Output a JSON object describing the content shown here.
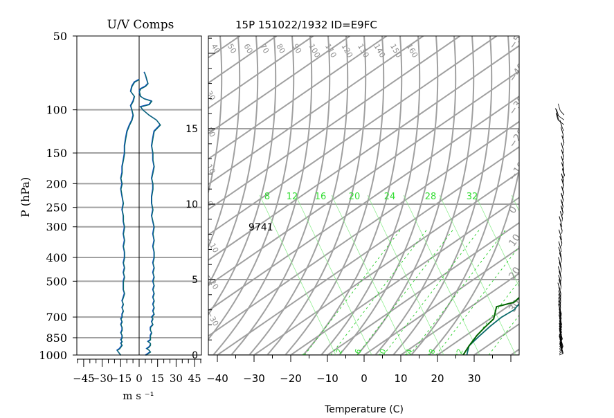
{
  "chart_data": [
    {
      "type": "line",
      "title": "U/V Comps",
      "xlabel": "m s ⁻¹",
      "ylabel": "P (hPa)",
      "xlim": [
        -50,
        50
      ],
      "ylim": [
        1000,
        50
      ],
      "y_scale": "log",
      "x_tick_labels": [
        "−45",
        "−30",
        "−15",
        "0",
        "15",
        "30",
        "45"
      ],
      "y_tick_labels": [
        "50",
        "100",
        "150",
        "200",
        "250",
        "300",
        "400",
        "500",
        "700",
        "850",
        "1000"
      ],
      "series": [
        {
          "key": "u",
          "color": "#0a6a6a",
          "points": [
            [
              -15,
              1000
            ],
            [
              -16,
              985
            ],
            [
              -17,
              970
            ],
            [
              -18,
              955
            ],
            [
              -16,
              940
            ],
            [
              -15,
              925
            ],
            [
              -14,
              910
            ],
            [
              -15,
              895
            ],
            [
              -14,
              880
            ],
            [
              -15,
              865
            ],
            [
              -14,
              850
            ],
            [
              -14,
              830
            ],
            [
              -15,
              810
            ],
            [
              -14,
              790
            ],
            [
              -14,
              770
            ],
            [
              -15,
              750
            ],
            [
              -14,
              730
            ],
            [
              -15,
              710
            ],
            [
              -14,
              700
            ],
            [
              -14,
              680
            ],
            [
              -13,
              660
            ],
            [
              -14,
              640
            ],
            [
              -13,
              620
            ],
            [
              -14,
              600
            ],
            [
              -13,
              580
            ],
            [
              -12,
              560
            ],
            [
              -13,
              540
            ],
            [
              -13,
              520
            ],
            [
              -13,
              500
            ],
            [
              -12,
              480
            ],
            [
              -13,
              460
            ],
            [
              -12,
              440
            ],
            [
              -13,
              420
            ],
            [
              -12,
              400
            ],
            [
              -12,
              380
            ],
            [
              -13,
              360
            ],
            [
              -12,
              340
            ],
            [
              -13,
              320
            ],
            [
              -12,
              300
            ],
            [
              -13,
              285
            ],
            [
              -13,
              270
            ],
            [
              -14,
              255
            ],
            [
              -13,
              240
            ],
            [
              -14,
              225
            ],
            [
              -15,
              210
            ],
            [
              -14,
              200
            ],
            [
              -15,
              190
            ],
            [
              -14,
              180
            ],
            [
              -14,
              170
            ],
            [
              -13,
              160
            ],
            [
              -12,
              150
            ],
            [
              -12,
              140
            ],
            [
              -11,
              130
            ],
            [
              -10,
              122
            ],
            [
              -8,
              115
            ],
            [
              -6,
              110
            ],
            [
              -5,
              105
            ],
            [
              -6,
              100
            ],
            [
              -7,
              96
            ],
            [
              -5,
              92
            ],
            [
              -4,
              88
            ],
            [
              -7,
              84
            ],
            [
              -6,
              80
            ],
            [
              -4,
              77
            ],
            [
              -2,
              76
            ],
            [
              0,
              75
            ]
          ]
        },
        {
          "key": "v",
          "color": "#0a6a6a",
          "points": [
            [
              5,
              1000
            ],
            [
              7,
              985
            ],
            [
              9,
              970
            ],
            [
              8,
              955
            ],
            [
              6,
              940
            ],
            [
              8,
              925
            ],
            [
              9,
              910
            ],
            [
              9,
              895
            ],
            [
              7,
              880
            ],
            [
              9,
              865
            ],
            [
              9,
              850
            ],
            [
              9,
              830
            ],
            [
              10,
              810
            ],
            [
              9,
              790
            ],
            [
              9,
              770
            ],
            [
              11,
              750
            ],
            [
              10,
              730
            ],
            [
              11,
              710
            ],
            [
              10,
              700
            ],
            [
              12,
              680
            ],
            [
              11,
              660
            ],
            [
              12,
              640
            ],
            [
              11,
              620
            ],
            [
              12,
              600
            ],
            [
              11,
              580
            ],
            [
              12,
              560
            ],
            [
              11,
              540
            ],
            [
              12,
              520
            ],
            [
              11,
              500
            ],
            [
              12,
              480
            ],
            [
              11,
              460
            ],
            [
              12,
              440
            ],
            [
              11,
              420
            ],
            [
              12,
              400
            ],
            [
              12,
              380
            ],
            [
              11,
              360
            ],
            [
              12,
              340
            ],
            [
              11,
              320
            ],
            [
              12,
              300
            ],
            [
              11,
              285
            ],
            [
              10,
              270
            ],
            [
              11,
              255
            ],
            [
              10,
              240
            ],
            [
              10,
              225
            ],
            [
              11,
              210
            ],
            [
              11,
              200
            ],
            [
              10,
              190
            ],
            [
              11,
              180
            ],
            [
              12,
              170
            ],
            [
              11,
              160
            ],
            [
              11,
              150
            ],
            [
              10,
              140
            ],
            [
              11,
              130
            ],
            [
              12,
              122
            ],
            [
              17,
              115
            ],
            [
              14,
              110
            ],
            [
              8,
              105
            ],
            [
              3,
              100
            ],
            [
              1,
              97
            ],
            [
              8,
              95
            ],
            [
              10,
              92
            ],
            [
              4,
              90
            ],
            [
              1,
              88
            ],
            [
              0,
              84
            ],
            [
              1,
              82
            ],
            [
              5,
              80
            ],
            [
              7,
              78
            ],
            [
              6,
              75
            ],
            [
              5,
              72
            ],
            [
              4,
              70
            ]
          ]
        }
      ]
    },
    {
      "type": "line",
      "title": "15P 151022/1932 ID=E9FC",
      "xlabel": "Temperature (C)",
      "x_tick_labels": [
        "−40",
        "−30",
        "−20",
        "−10",
        "0",
        "10",
        "20",
        "30"
      ],
      "height_tick_labels": [
        "0",
        "5",
        "10",
        "15"
      ],
      "mixing_ratio_labels": [
        "8",
        "12",
        "16",
        "20",
        "24",
        "28",
        "32"
      ],
      "theta_labels_top": [
        "40",
        "50",
        "60",
        "70",
        "80",
        "90",
        "100",
        "110",
        "120",
        "130",
        "140",
        "150",
        "160"
      ],
      "theta_labels_left": [
        "30",
        "20",
        "10",
        "0",
        "−10",
        "−20",
        "−30"
      ],
      "isotherm_labels_right": [
        "−50",
        "−40",
        "−30",
        "−20",
        "−10",
        "0",
        "10",
        "20",
        "30"
      ],
      "moist_adiabat_labels_bottom": [
        "8",
        "12",
        "16",
        "20",
        "24",
        "28",
        "32"
      ],
      "annotation": "9741",
      "series": [
        {
          "key": "temperature",
          "color": "#0a6a6a",
          "points": [
            [
              28,
              0.0
            ],
            [
              27,
              0.2
            ],
            [
              25,
              0.6
            ],
            [
              24,
              1.2
            ],
            [
              23,
              1.9
            ],
            [
              22.5,
              2.5
            ],
            [
              23,
              3.0
            ],
            [
              22,
              3.4
            ],
            [
              21,
              4.2
            ],
            [
              21,
              5.0
            ],
            [
              20,
              5.8
            ],
            [
              19,
              6.4
            ],
            [
              18,
              6.9
            ],
            [
              16,
              7.6
            ],
            [
              13,
              8.6
            ],
            [
              11,
              9.6
            ],
            [
              8,
              10.6
            ],
            [
              5,
              11.6
            ],
            [
              2,
              12.8
            ],
            [
              -1,
              13.8
            ],
            [
              -3,
              14.8
            ],
            [
              -4,
              15.6
            ],
            [
              -4,
              16.4
            ],
            [
              -2,
              17.0
            ],
            [
              1,
              17.3
            ],
            [
              3,
              17.6
            ],
            [
              6,
              18.2
            ],
            [
              8,
              18.8
            ],
            [
              10,
              19.1
            ]
          ]
        },
        {
          "key": "dewpoint",
          "color": "#006400",
          "points": [
            [
              27,
              0.0
            ],
            [
              25,
              0.6
            ],
            [
              23,
              1.3
            ],
            [
              22,
              1.8
            ],
            [
              21,
              2.4
            ],
            [
              17,
              3.2
            ],
            [
              18,
              3.3
            ],
            [
              20,
              3.5
            ],
            [
              19,
              4.2
            ],
            [
              19,
              4.6
            ],
            [
              20,
              5.1
            ],
            [
              19,
              5.5
            ],
            [
              18,
              6.2
            ],
            [
              17,
              6.8
            ],
            [
              15,
              7.4
            ],
            [
              12,
              8.2
            ],
            [
              6,
              9.0
            ],
            [
              -4,
              9.8
            ],
            [
              -14,
              10.4
            ],
            [
              -21,
              10.8
            ]
          ]
        }
      ]
    }
  ]
}
